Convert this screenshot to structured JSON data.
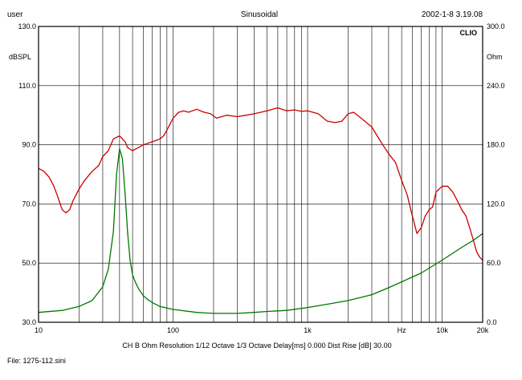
{
  "header": {
    "left": "user",
    "center": "Sinusoidal",
    "right": "2002-1-8 3.19.08"
  },
  "footer": {
    "settings": "CH B  Ohm  Resolution 1/12 Octave  1/3 Octave  Delay[ms] 0.000  Dist Rise [dB] 30.00",
    "file": "File: 1275-112.sini"
  },
  "colors": {
    "spl": "#cc0000",
    "impedance": "#007700",
    "grid": "#000000"
  },
  "chart_data": {
    "type": "line",
    "title": "Sinusoidal",
    "logo": "CLIO",
    "x_scale": "log",
    "xlim": [
      10,
      20000
    ],
    "x_tick_labels": [
      {
        "value": 10,
        "label": "10"
      },
      {
        "value": 100,
        "label": "100"
      },
      {
        "value": 1000,
        "label": "1k"
      },
      {
        "value": 5000,
        "label": "Hz"
      },
      {
        "value": 10000,
        "label": "10k"
      },
      {
        "value": 20000,
        "label": "20k"
      }
    ],
    "ylabel_left": "dBSPL",
    "ylim_left": [
      30,
      130
    ],
    "y_ticks_left": [
      "30.0",
      "50.0",
      "70.0",
      "90.0",
      "110.0",
      "130.0"
    ],
    "ylabel_right": "Ohm",
    "ylim_right": [
      0,
      300
    ],
    "y_ticks_right": [
      "0.0",
      "60.0",
      "120.0",
      "180.0",
      "240.0",
      "300.0"
    ],
    "grid": true,
    "series": [
      {
        "axis": "left",
        "color": "#cc0000",
        "x": [
          10,
          11,
          12,
          13,
          14,
          15,
          16,
          17,
          18,
          20,
          22,
          25,
          28,
          30,
          33,
          36,
          40,
          44,
          46,
          50,
          55,
          60,
          70,
          80,
          85,
          90,
          100,
          110,
          120,
          130,
          150,
          170,
          190,
          210,
          250,
          300,
          350,
          400,
          450,
          500,
          550,
          600,
          700,
          800,
          900,
          1000,
          1200,
          1400,
          1600,
          1800,
          2000,
          2200,
          2500,
          3000,
          3500,
          4000,
          4500,
          5000,
          5500,
          6000,
          6500,
          7000,
          7500,
          8000,
          8500,
          9000,
          10000,
          11000,
          12000,
          13000,
          14000,
          15000,
          16000,
          17000,
          18000,
          19000,
          20000
        ],
        "y": [
          82,
          81,
          79,
          76,
          72,
          68,
          67,
          68,
          71,
          75,
          78,
          81,
          83,
          86,
          88,
          92,
          93,
          91,
          89,
          88,
          89,
          90,
          91,
          92,
          93,
          95,
          99,
          101,
          101.5,
          101,
          102,
          101,
          100.5,
          99,
          100,
          99.5,
          100,
          100.5,
          101,
          101.5,
          102,
          102.5,
          101.5,
          101.8,
          101.3,
          101.5,
          100.5,
          98,
          97.5,
          98,
          100.5,
          101,
          99,
          96,
          91,
          87,
          84,
          78,
          73,
          66,
          60,
          62,
          66,
          68,
          69,
          74,
          76,
          76,
          74,
          71,
          68,
          66,
          62,
          58,
          54,
          52,
          51
        ]
      },
      {
        "axis": "right",
        "color": "#007700",
        "x": [
          10,
          15,
          20,
          25,
          30,
          33,
          36,
          38,
          40,
          42,
          44,
          46,
          48,
          50,
          52,
          54,
          56,
          60,
          65,
          70,
          80,
          100,
          150,
          200,
          300,
          400,
          500,
          700,
          1000,
          1500,
          2000,
          3000,
          4000,
          5000,
          7000,
          10000,
          14000,
          17000,
          20000
        ],
        "y": [
          10,
          12,
          16,
          22,
          36,
          54,
          92,
          150,
          176,
          166,
          130,
          90,
          62,
          48,
          42,
          37,
          33,
          27,
          23,
          20,
          16,
          13,
          10,
          9,
          9,
          10,
          11,
          12,
          15,
          19,
          22,
          28,
          35,
          41,
          50,
          63,
          76,
          83,
          90
        ]
      }
    ]
  }
}
